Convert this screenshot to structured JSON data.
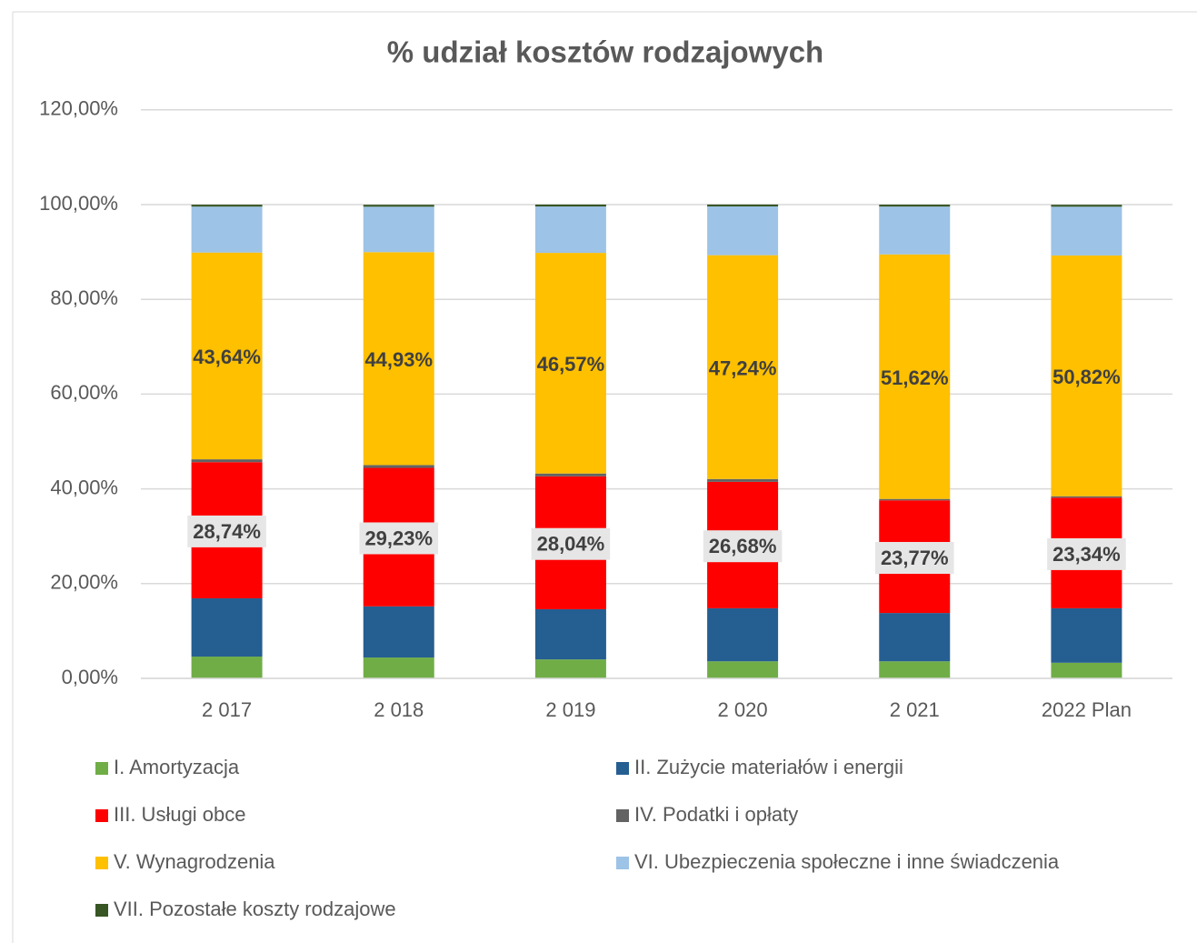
{
  "chart_data": {
    "type": "stacked_bar",
    "title": "% udział kosztów rodzajowych",
    "categories": [
      "2 017",
      "2 018",
      "2 019",
      "2 020",
      "2 021",
      "2022 Plan"
    ],
    "ylim": [
      0,
      120
    ],
    "yticks": [
      {
        "value": 0,
        "label": "0,00%"
      },
      {
        "value": 20,
        "label": "20,00%"
      },
      {
        "value": 40,
        "label": "40,00%"
      },
      {
        "value": 60,
        "label": "60,00%"
      },
      {
        "value": 80,
        "label": "80,00%"
      },
      {
        "value": 100,
        "label": "100,00%"
      },
      {
        "value": 120,
        "label": "120,00%"
      }
    ],
    "grid": true,
    "legend": "bottom",
    "series": [
      {
        "name": "I. Amortyzacja",
        "color": "#70ad47",
        "values": [
          4.6,
          4.4,
          4.0,
          3.6,
          3.6,
          3.3
        ]
      },
      {
        "name": "II. Zużycie materiałów i energii",
        "color": "#255e91",
        "values": [
          12.3,
          10.8,
          10.6,
          11.2,
          10.2,
          11.5
        ]
      },
      {
        "name": "III. Usługi obce",
        "color": "#ff0000",
        "values": [
          28.74,
          29.23,
          28.04,
          26.68,
          23.77,
          23.34
        ],
        "value_labels": [
          "28,74%",
          "29,23%",
          "28,04%",
          "26,68%",
          "23,77%",
          "23,34%"
        ]
      },
      {
        "name": "IV. Podatki i opłaty",
        "color": "#636363",
        "values": [
          0.6,
          0.6,
          0.6,
          0.6,
          0.3,
          0.3
        ]
      },
      {
        "name": "V. Wynagrodzenia",
        "color": "#ffc000",
        "values": [
          43.64,
          44.93,
          46.57,
          47.24,
          51.62,
          50.82
        ],
        "value_labels": [
          "43,64%",
          "44,93%",
          "46,57%",
          "47,24%",
          "51,62%",
          "50,82%"
        ]
      },
      {
        "name": "VI. Ubezpieczenia społeczne i inne świadczenia",
        "color": "#9dc3e6",
        "values": [
          9.7,
          9.6,
          9.8,
          10.3,
          10.1,
          10.3
        ]
      },
      {
        "name": "VII. Pozostałe koszty rodzajowe",
        "color": "#375623",
        "values": [
          0.4,
          0.4,
          0.4,
          0.4,
          0.4,
          0.4
        ]
      }
    ]
  }
}
